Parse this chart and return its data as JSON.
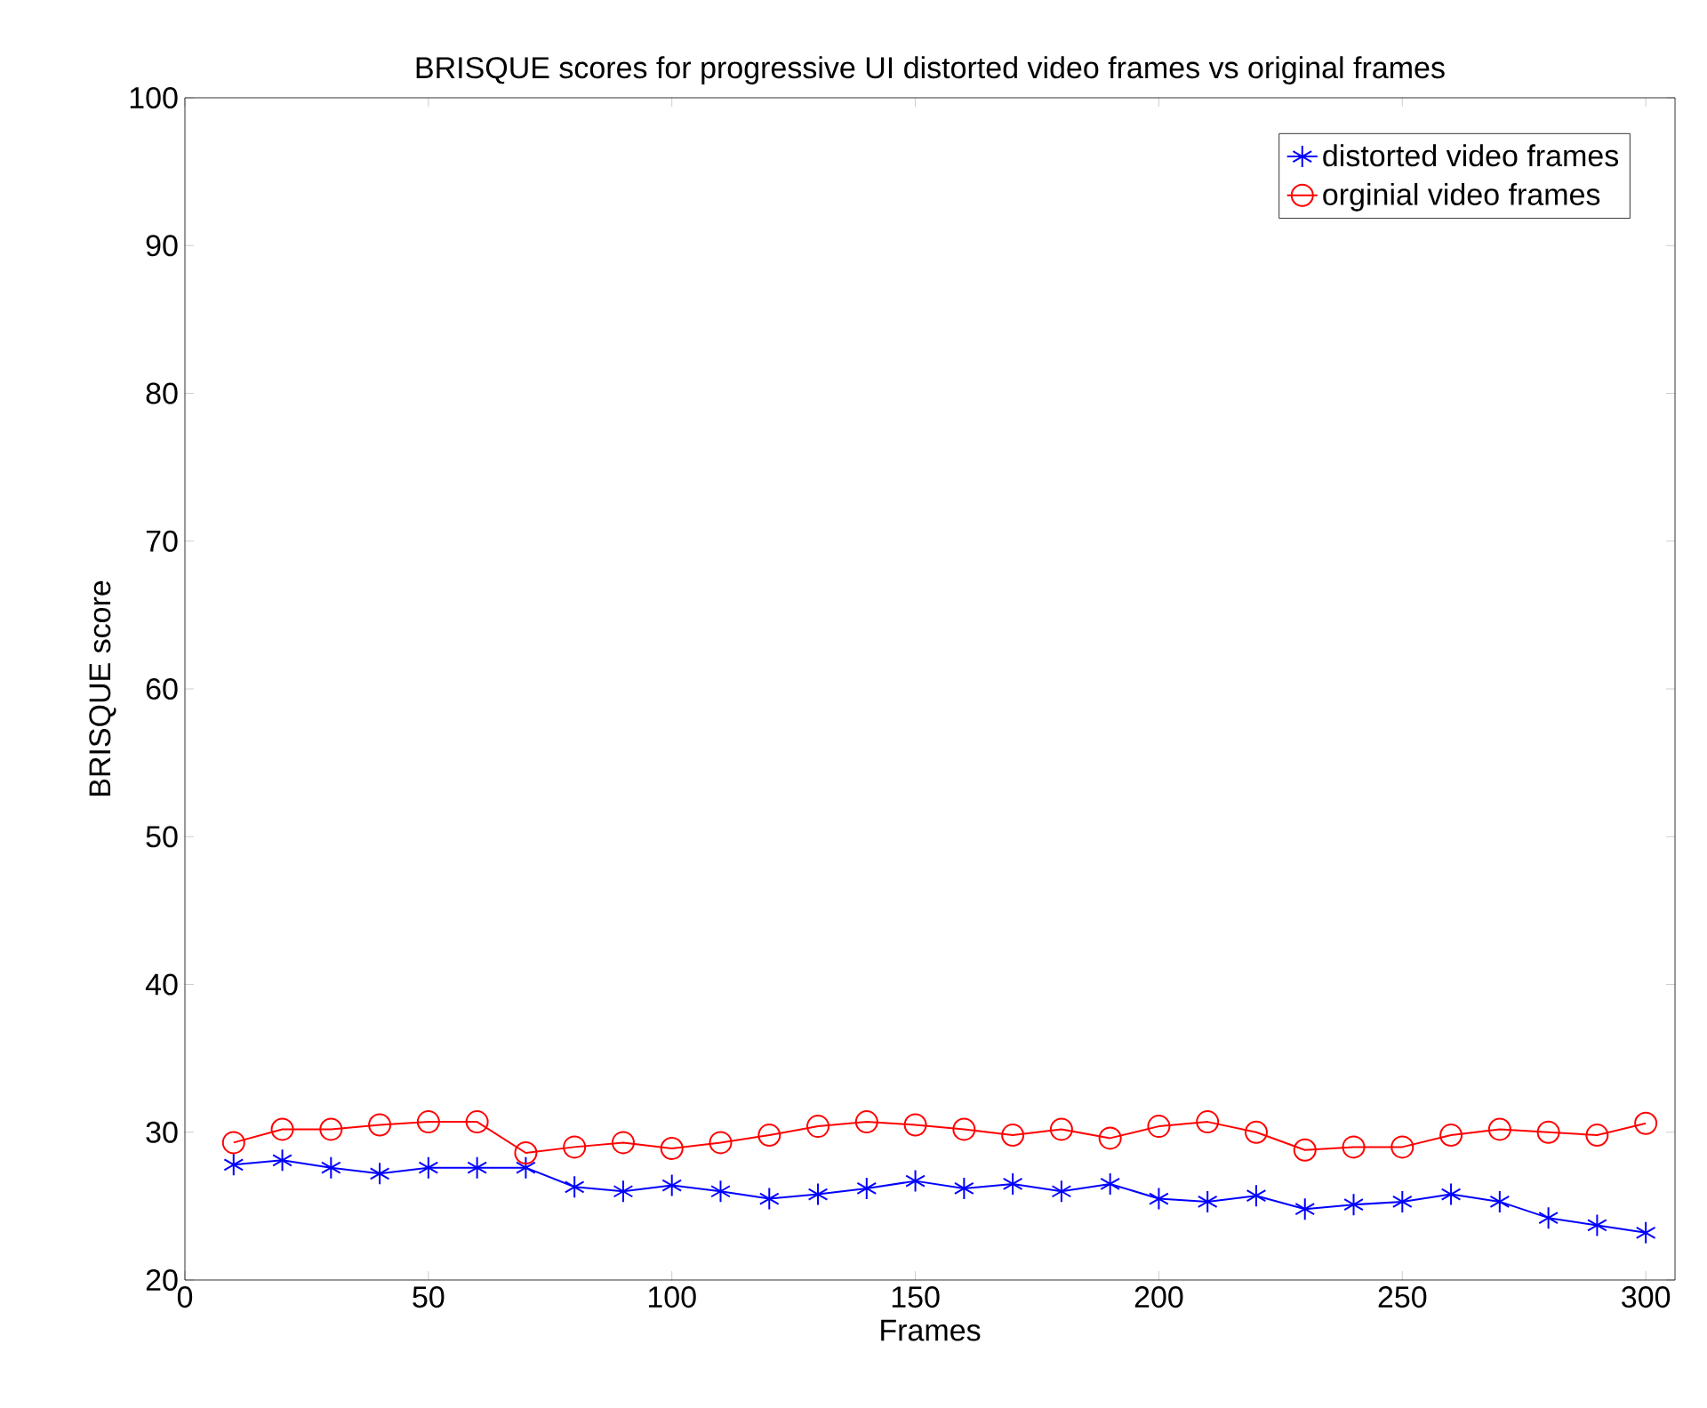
{
  "chart_data": {
    "type": "line",
    "title": "BRISQUE scores for progressive UI distorted video frames vs original frames",
    "xlabel": "Frames",
    "ylabel": "BRISQUE score",
    "x": [
      10,
      20,
      30,
      40,
      50,
      60,
      70,
      80,
      90,
      100,
      110,
      120,
      130,
      140,
      150,
      160,
      170,
      180,
      190,
      200,
      210,
      220,
      230,
      240,
      250,
      260,
      270,
      280,
      290,
      300
    ],
    "series": [
      {
        "name": "distorted video frames",
        "color": "#0000ff",
        "marker": "cross",
        "values": [
          27.8,
          28.1,
          27.6,
          27.2,
          27.6,
          27.6,
          27.6,
          26.3,
          26.0,
          26.4,
          26.0,
          25.5,
          25.8,
          26.2,
          26.7,
          26.2,
          26.5,
          26.0,
          26.5,
          25.5,
          25.3,
          25.7,
          24.8,
          25.1,
          25.3,
          25.8,
          25.3,
          24.2,
          23.7,
          23.2
        ]
      },
      {
        "name": "orginial video frames",
        "color": "#ff0000",
        "marker": "circle",
        "values": [
          29.3,
          30.2,
          30.2,
          30.5,
          30.7,
          30.7,
          28.6,
          29.0,
          29.3,
          28.9,
          29.3,
          29.8,
          30.4,
          30.7,
          30.5,
          30.2,
          29.8,
          30.2,
          29.6,
          30.4,
          30.7,
          30.0,
          28.8,
          29.0,
          29.0,
          29.8,
          30.2,
          30.0,
          29.8,
          30.6
        ]
      }
    ],
    "xlim": [
      0,
      306
    ],
    "xticks": [
      0,
      50,
      100,
      150,
      200,
      250,
      300
    ],
    "ylim": [
      20,
      100
    ],
    "yticks": [
      20,
      30,
      40,
      50,
      60,
      70,
      80,
      90,
      100
    ],
    "grid": false,
    "legend": "top right"
  }
}
